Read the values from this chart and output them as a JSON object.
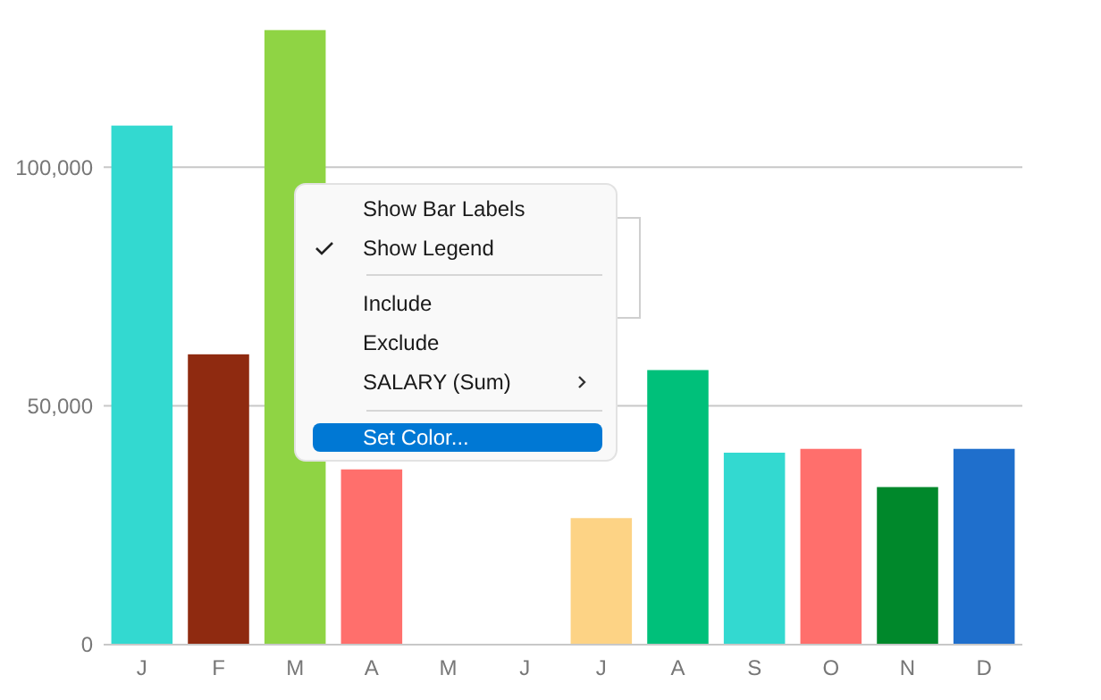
{
  "chart_data": {
    "type": "bar",
    "categories": [
      "J",
      "F",
      "M",
      "A",
      "M",
      "J",
      "J",
      "A",
      "S",
      "O",
      "N",
      "D"
    ],
    "values": [
      108700,
      60800,
      128700,
      36700,
      null,
      null,
      26500,
      57500,
      40200,
      41000,
      33000,
      41000
    ],
    "colors": [
      "#33d9d0",
      "#8f2a10",
      "#8fd444",
      "#ff6f6c",
      null,
      null,
      "#fdd385",
      "#00c07a",
      "#33d9d0",
      "#ff6f6c",
      "#00882b",
      "#1f6fcc"
    ],
    "ylim": [
      0,
      135000
    ],
    "yticks": [
      {
        "value": 0,
        "label": "0"
      },
      {
        "value": 50000,
        "label": "50,000"
      },
      {
        "value": 100000,
        "label": "100,000"
      }
    ],
    "grid": "y",
    "annotations": [
      "Show Bar Labels",
      "Show Legend",
      "Include",
      "Exclude",
      "SALARY (Sum)",
      "Set Color..."
    ]
  }
}
